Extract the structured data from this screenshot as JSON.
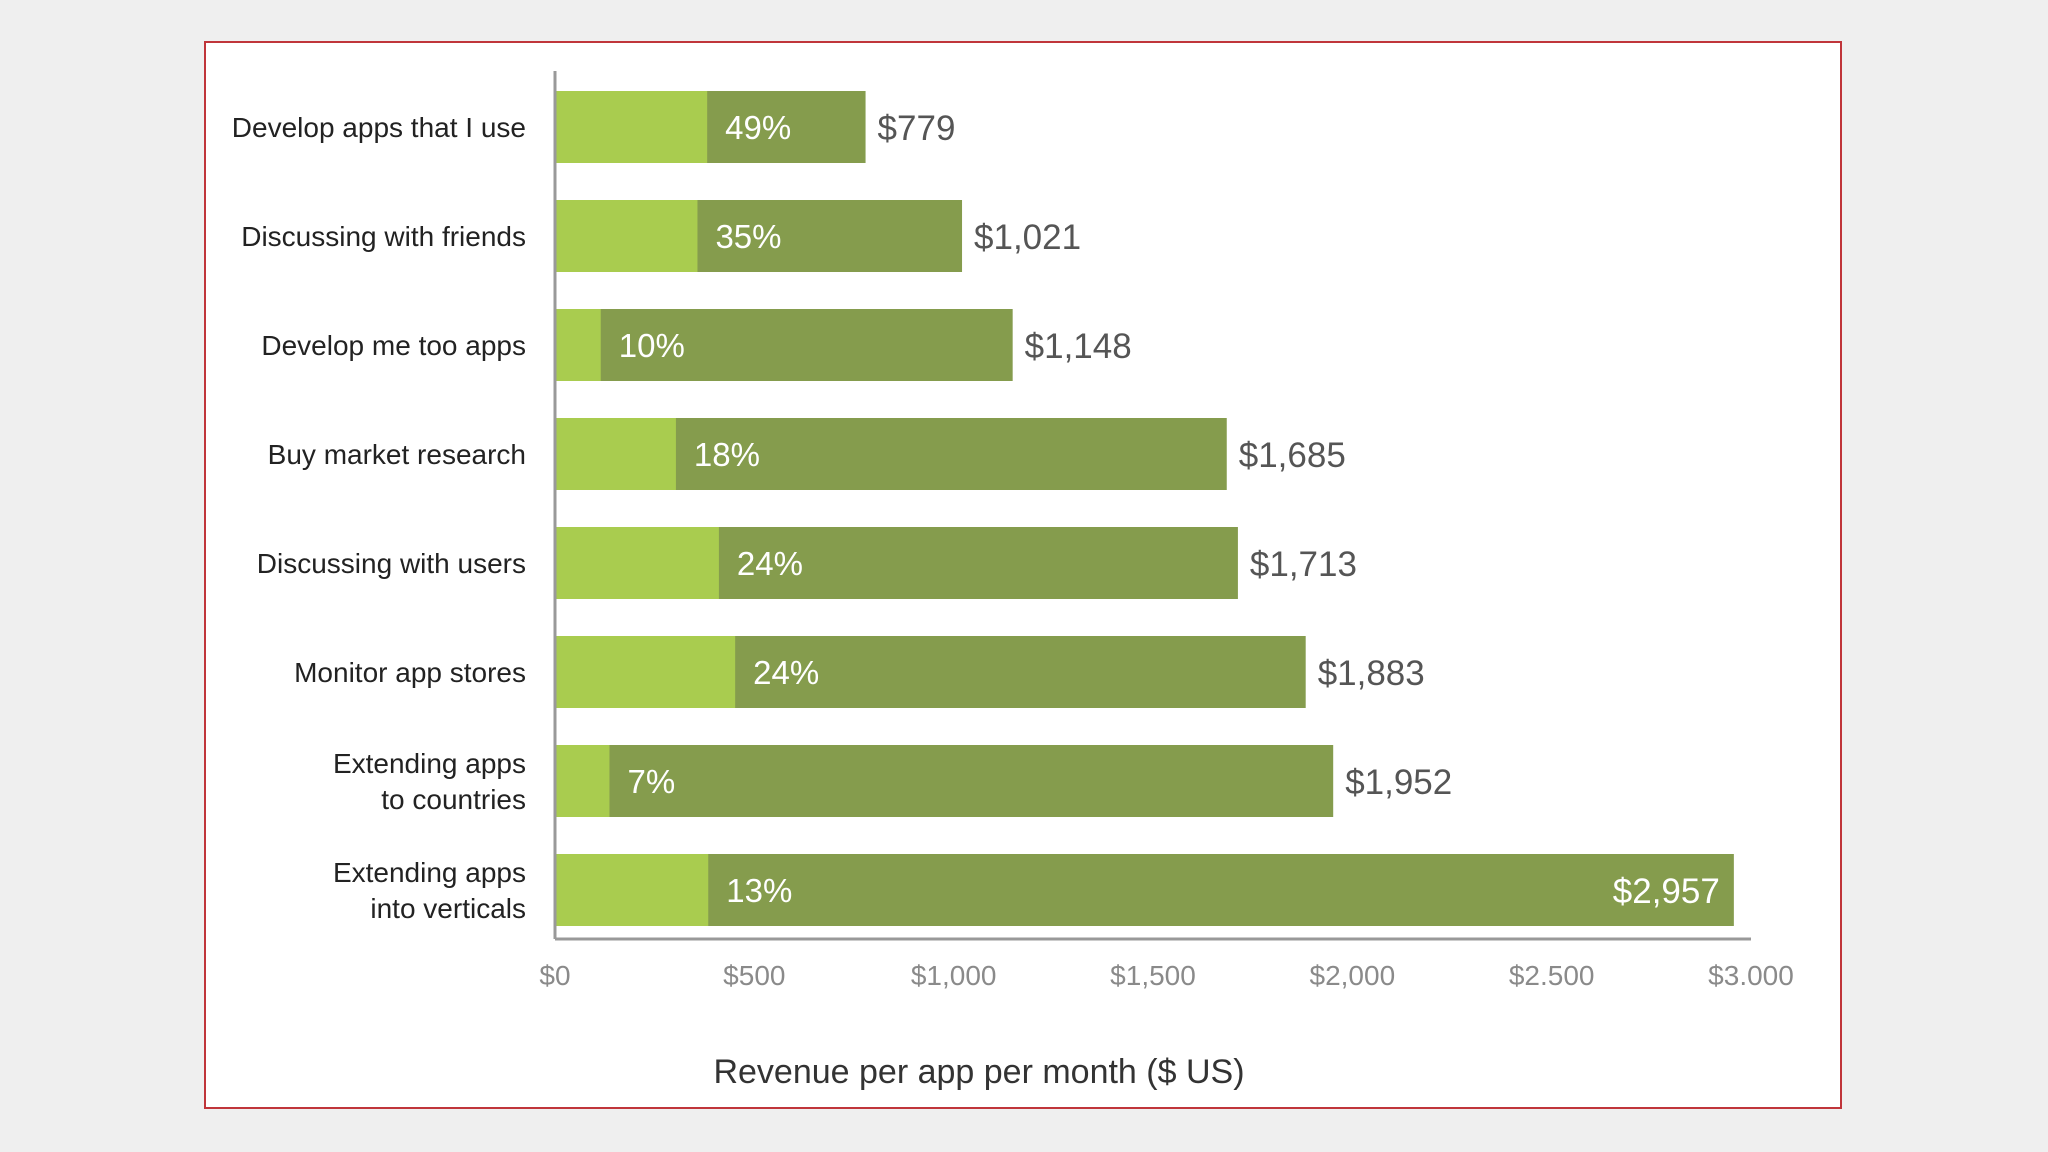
{
  "chart_data": {
    "type": "bar",
    "orientation": "horizontal",
    "stacked": true,
    "categories": [
      [
        "Develop apps that I use"
      ],
      [
        "Discussing with friends"
      ],
      [
        "Develop me too apps"
      ],
      [
        "Buy market research"
      ],
      [
        "Discussing with users"
      ],
      [
        "Monitor app stores"
      ],
      [
        "Extending apps",
        "to countries"
      ],
      [
        "Extending apps",
        "into verticals"
      ]
    ],
    "values": [
      779,
      1021,
      1148,
      1685,
      1713,
      1883,
      1952,
      2957
    ],
    "value_labels": [
      "$779",
      "$1,021",
      "$1,148",
      "$1,685",
      "$1,713",
      "$1,883",
      "$1,952",
      "$2,957"
    ],
    "percent_values": [
      49,
      35,
      10,
      18,
      24,
      24,
      7,
      13
    ],
    "percent_labels": [
      "49%",
      "35%",
      "10%",
      "18%",
      "24%",
      "24%",
      "7%",
      "13%"
    ],
    "xlim": [
      0,
      3000
    ],
    "xticks": [
      0,
      500,
      1000,
      1500,
      2000,
      2500,
      3000
    ],
    "xtick_labels": [
      "$0",
      "$500",
      "$1,000",
      "$1,500",
      "$2,000",
      "$2.500",
      "$3.000"
    ],
    "xlabel": "Revenue per app per month ($ US)",
    "ylabel": "",
    "grid": false,
    "colors": {
      "light_segment": "#a9cc4f",
      "dark_segment": "#859c4d",
      "axis": "#999999",
      "frame_border": "#c0353a"
    }
  }
}
